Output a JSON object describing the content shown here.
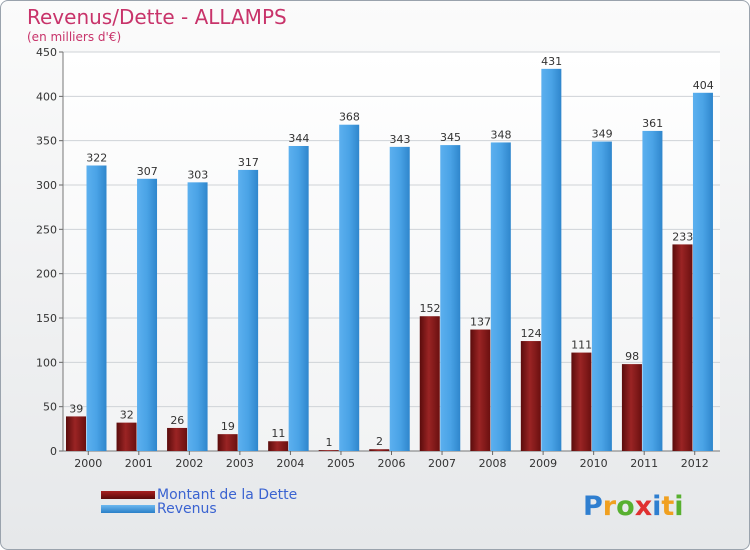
{
  "chart_data": {
    "type": "bar",
    "title": "Revenus/Dette - ALLAMPS",
    "subtitle": "(en milliers d'€)",
    "xlabel": "",
    "ylabel": "",
    "ylim": [
      0,
      450
    ],
    "yticks": [
      0,
      50,
      100,
      150,
      200,
      250,
      300,
      350,
      400,
      450
    ],
    "grid": true,
    "categories": [
      "2000",
      "2001",
      "2002",
      "2003",
      "2004",
      "2005",
      "2006",
      "2007",
      "2008",
      "2009",
      "2010",
      "2011",
      "2012"
    ],
    "series": [
      {
        "name": "Montant de la Dette",
        "color": "#8b1a1a",
        "values": [
          39,
          32,
          26,
          19,
          11,
          1,
          2,
          152,
          137,
          124,
          111,
          98,
          233
        ]
      },
      {
        "name": "Revenus",
        "color": "#3d99e0",
        "values": [
          322,
          307,
          303,
          317,
          344,
          368,
          343,
          345,
          348,
          431,
          349,
          361,
          404
        ]
      }
    ],
    "legend_position": "bottom-left"
  },
  "logo": {
    "letters": [
      "P",
      "r",
      "o",
      "x",
      "i",
      "t",
      "i"
    ],
    "colors": [
      "#2f7fd0",
      "#f0a020",
      "#58b030",
      "#e03030",
      "#2f7fd0",
      "#f0a020",
      "#58b030"
    ]
  }
}
